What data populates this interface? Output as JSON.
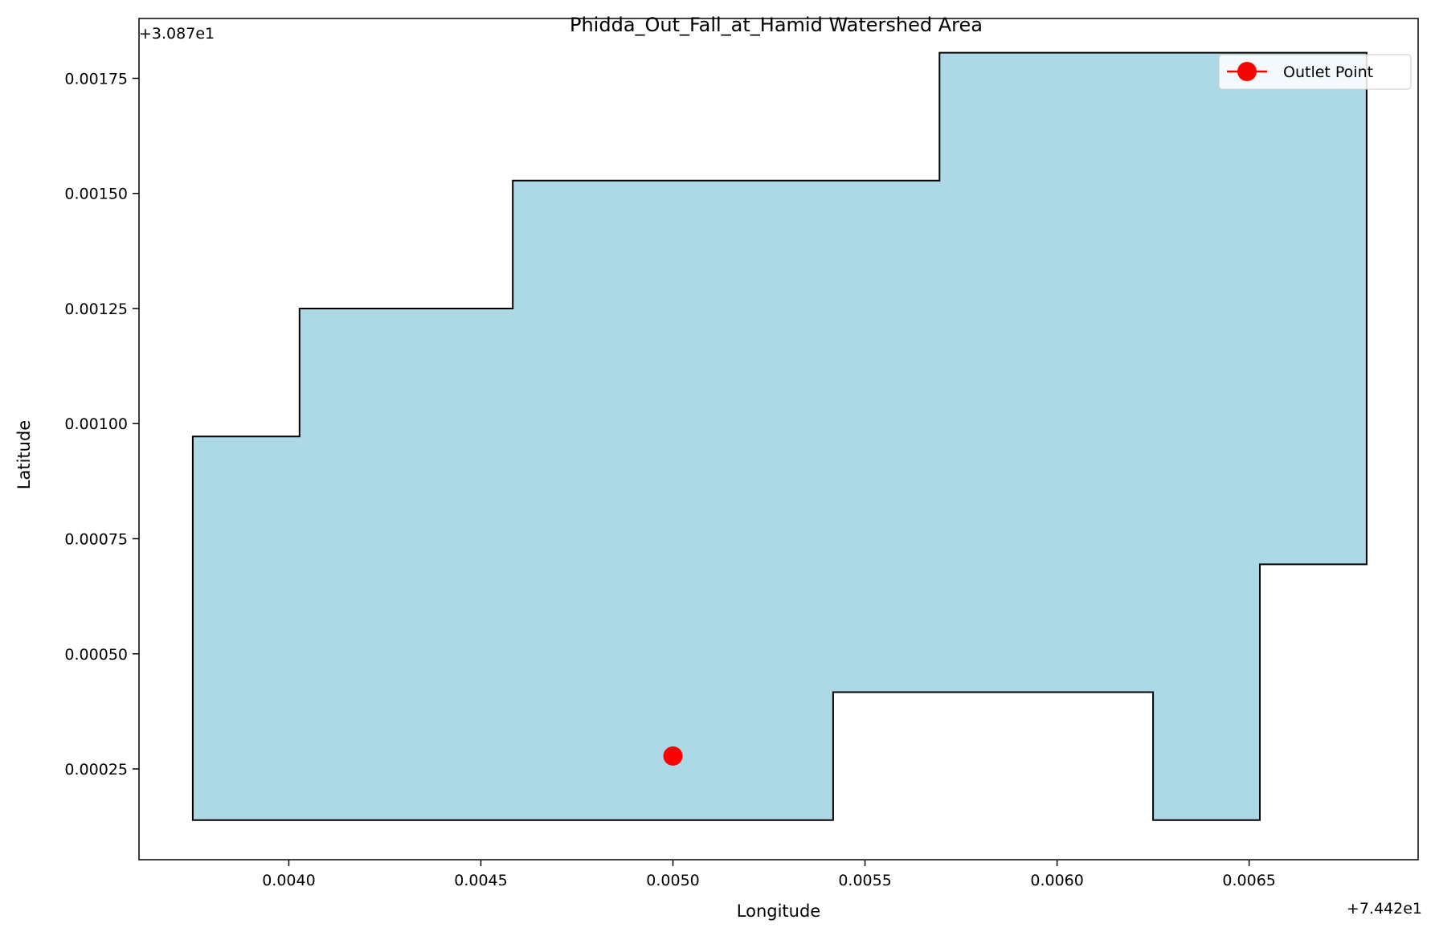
{
  "chart_data": {
    "type": "area",
    "title": "Phidda_Out_Fall_at_Hamid Watershed Area",
    "xlabel": "Longitude",
    "ylabel": "Latitude",
    "x_offset_label": "+7.442e1",
    "y_offset_label": "+3.087e1",
    "xlim": [
      0.00361,
      0.00694
    ],
    "ylim": [
      5.28e-05,
      0.00188
    ],
    "x_ticks": [
      0.004,
      0.0045,
      0.005,
      0.0055,
      0.006,
      0.0065
    ],
    "x_tick_labels": [
      "0.0040",
      "0.0045",
      "0.0050",
      "0.0055",
      "0.0060",
      "0.0065"
    ],
    "y_ticks": [
      0.00025,
      0.0005,
      0.00075,
      0.001,
      0.00125,
      0.0015,
      0.00175
    ],
    "y_tick_labels": [
      "0.00025",
      "0.00050",
      "0.00075",
      "0.00100",
      "0.00125",
      "0.00150",
      "0.00175"
    ],
    "grid": false,
    "legend_position": "top-right",
    "colors": {
      "watershed_fill": "#add8e6",
      "watershed_edge": "#000000",
      "outlet": "#ff0000"
    },
    "watershed_polygon": [
      [
        0.00375,
        0.0001389
      ],
      [
        0.00375,
        0.0009722
      ],
      [
        0.004028,
        0.0009722
      ],
      [
        0.004028,
        0.00125
      ],
      [
        0.004583,
        0.00125
      ],
      [
        0.004583,
        0.0015278
      ],
      [
        0.005694,
        0.0015278
      ],
      [
        0.005694,
        0.0018056
      ],
      [
        0.006806,
        0.0018056
      ],
      [
        0.006806,
        0.0006944
      ],
      [
        0.006528,
        0.0006944
      ],
      [
        0.006528,
        0.0001389
      ],
      [
        0.00625,
        0.0001389
      ],
      [
        0.00625,
        0.0004167
      ],
      [
        0.005417,
        0.0004167
      ],
      [
        0.005417,
        0.0001389
      ]
    ],
    "series": [
      {
        "name": "Outlet Point",
        "type": "scatter",
        "x": [
          0.005
        ],
        "y": [
          0.000278
        ]
      }
    ]
  }
}
